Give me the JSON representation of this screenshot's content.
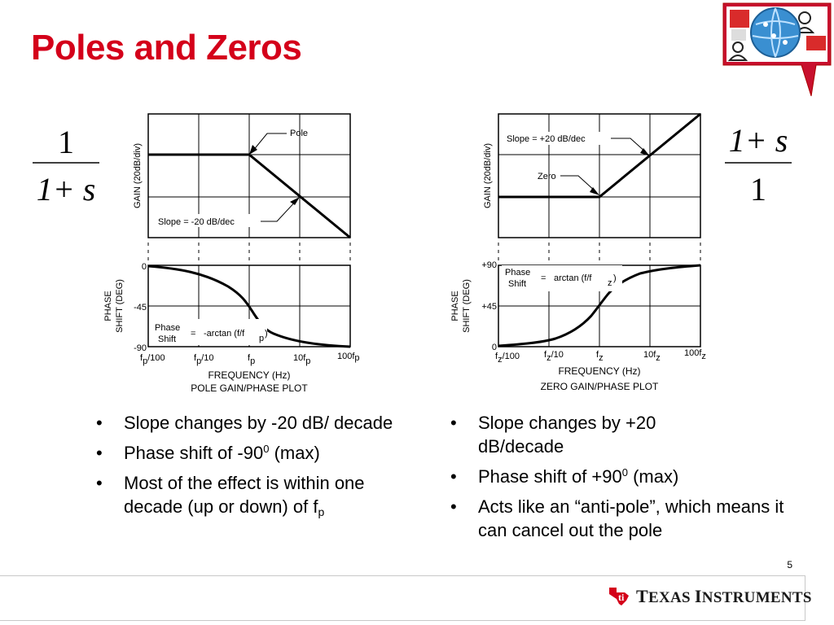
{
  "slide": {
    "title": "Poles and Zeros",
    "page_number": "5"
  },
  "formulas": {
    "pole": {
      "numerator": "1",
      "denominator": "1+ s"
    },
    "zero": {
      "numerator": "1+ s",
      "denominator": "1"
    }
  },
  "pole_plot": {
    "gain_axis_label": "GAIN (20dB/div)",
    "phase_axis_label": "PHASE\nSHIFT (DEG)",
    "pole_label": "Pole",
    "slope_label": "Slope = -20 dB/dec",
    "phase_formula": {
      "left": "Phase\nShift",
      "eq": "=",
      "right": "-arctan (f/f",
      "sub": "p",
      "close": ")"
    },
    "phase_ticks": [
      "0",
      "-45",
      "-90"
    ],
    "x_ticks": [
      {
        "base": "f",
        "sub": "p",
        "suffix": "/100"
      },
      {
        "base": "f",
        "sub": "p",
        "suffix": "/10"
      },
      {
        "base": "f",
        "sub": "p",
        "suffix": ""
      },
      {
        "base": "10f",
        "sub": "p",
        "suffix": ""
      },
      {
        "base": "100f",
        "sub": "p",
        "suffix": ""
      }
    ],
    "xlabel": "FREQUENCY (Hz)",
    "caption": "POLE GAIN/PHASE PLOT"
  },
  "zero_plot": {
    "gain_axis_label": "GAIN (20dB/div)",
    "phase_axis_label": "PHASE\nSHIFT (DEG)",
    "zero_label": "Zero",
    "slope_label": "Slope = +20 dB/dec",
    "phase_formula": {
      "left": "Phase\nShift",
      "eq": "=",
      "right": "arctan (f/f",
      "sub": "z",
      "close": ")"
    },
    "phase_ticks": [
      "+90",
      "+45",
      "0"
    ],
    "x_ticks": [
      {
        "base": "f",
        "sub": "z",
        "suffix": "/100"
      },
      {
        "base": "f",
        "sub": "z",
        "suffix": "/10"
      },
      {
        "base": "f",
        "sub": "z",
        "suffix": ""
      },
      {
        "base": "10f",
        "sub": "z",
        "suffix": ""
      },
      {
        "base": "100f",
        "sub": "z",
        "suffix": ""
      }
    ],
    "xlabel": "FREQUENCY (Hz)",
    "caption": "ZERO GAIN/PHASE PLOT"
  },
  "bullets_left": [
    {
      "text": "Slope changes by -20 dB/ decade"
    },
    {
      "text": "Phase shift of -90",
      "sup": "0",
      "tail": " (max)"
    },
    {
      "text": "Most of the effect is within one decade (up or down) of f",
      "sub": "p"
    }
  ],
  "bullets_right": [
    {
      "text": "Slope changes by +20 dB/decade"
    },
    {
      "text": "Phase shift of +90",
      "sup": "0",
      "tail": " (max)"
    },
    {
      "text": "Acts like an “anti-pole”, which means it can cancel out the pole"
    }
  ],
  "footer": {
    "brand_first": "T",
    "brand_first_rest": "EXAS ",
    "brand_second": "I",
    "brand_second_rest": "NSTRUMENTS",
    "brand_icon": "texas-state-icon",
    "brand_color": "#d4001a"
  },
  "colors": {
    "title": "#d4001a",
    "plot_line": "#000000"
  }
}
